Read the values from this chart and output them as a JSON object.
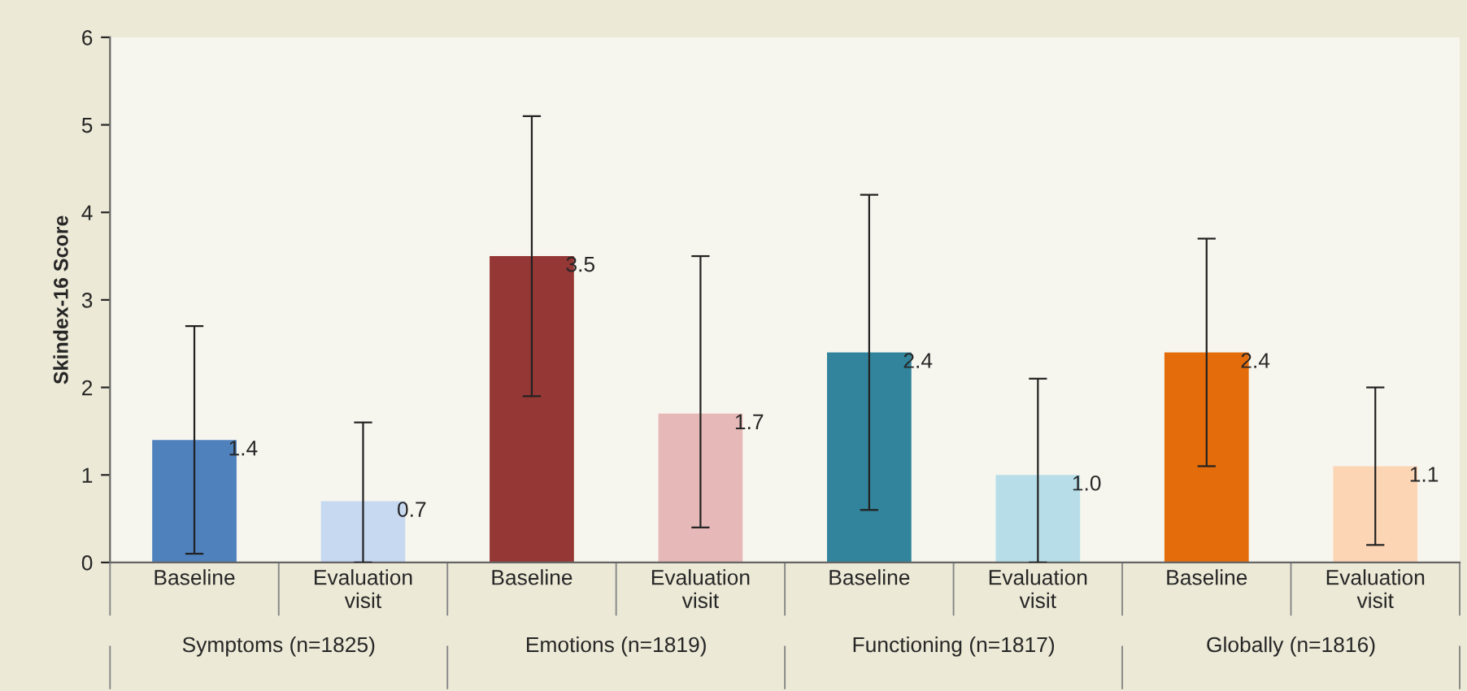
{
  "chart_data": {
    "type": "bar",
    "ylabel": "Skindex-16 Score",
    "categories": [
      "Baseline",
      "Evaluation\nvisit",
      "Baseline",
      "Evaluation\nvisit",
      "Baseline",
      "Evaluation\nvisit",
      "Baseline",
      "Evaluation\nvisit"
    ],
    "values": [
      1.4,
      0.7,
      3.5,
      1.7,
      2.4,
      1.0,
      2.4,
      1.1
    ],
    "value_labels": [
      "1.4",
      "0.7",
      "3.5",
      "1.7",
      "2.4",
      "1.0",
      "2.4",
      "1.1"
    ],
    "colors": [
      "#4f81bd",
      "#c6d9f1",
      "#953735",
      "#e6b9b8",
      "#31849b",
      "#b7dee8",
      "#e46c0a",
      "#fcd5b5"
    ],
    "errors": [
      [
        0.1,
        2.7
      ],
      [
        0,
        1.6
      ],
      [
        1.9,
        5.1
      ],
      [
        0.4,
        3.5
      ],
      [
        0.6,
        4.2
      ],
      [
        0,
        2.1
      ],
      [
        1.1,
        3.7
      ],
      [
        0.2,
        2.0
      ]
    ],
    "ylim": [
      0,
      6
    ],
    "yticks": [
      0,
      1,
      2,
      3,
      4,
      5,
      6
    ],
    "grid": false,
    "legend": false,
    "annotations": [
      "Symptoms (n=1825)",
      "Emotions (n=1819)",
      "Functioning (n=1817)",
      "Globally (n=1816)"
    ]
  }
}
